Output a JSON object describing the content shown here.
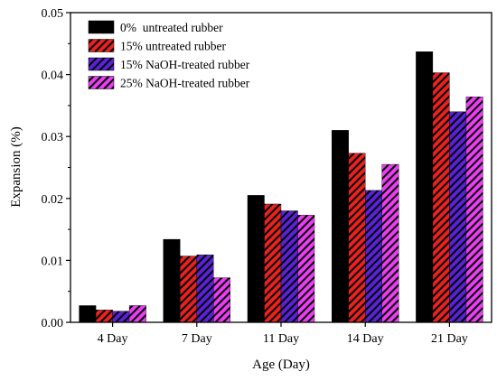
{
  "chart_data": {
    "type": "bar",
    "xlabel": "Age (Day)",
    "ylabel": "Expansion (%)",
    "ylim": [
      0,
      0.05
    ],
    "yticks": [
      "0.00",
      "0.01",
      "0.02",
      "0.03",
      "0.04",
      "0.05"
    ],
    "categories": [
      "4 Day",
      "7 Day",
      "11 Day",
      "14 Day",
      "21 Day"
    ],
    "legend_position": "top-left",
    "grid": false,
    "series": [
      {
        "name": "0%  untreated rubber",
        "color": "#000000",
        "pattern": "solid",
        "values": [
          0.0027,
          0.0134,
          0.0205,
          0.031,
          0.0437
        ]
      },
      {
        "name": "15% untreated rubber",
        "color": "#e8221f",
        "pattern": "diagonal-hatch",
        "values": [
          0.002,
          0.0107,
          0.0191,
          0.0273,
          0.0403
        ]
      },
      {
        "name": "15% NaOH-treated rubber",
        "color": "#5a22d6",
        "pattern": "diagonal-hatch",
        "values": [
          0.0018,
          0.0109,
          0.018,
          0.0213,
          0.034
        ]
      },
      {
        "name": "25% NaOH-treated rubber",
        "color": "#e83ef0",
        "pattern": "diagonal-hatch",
        "values": [
          0.0027,
          0.0072,
          0.0173,
          0.0255,
          0.0364
        ]
      }
    ]
  }
}
